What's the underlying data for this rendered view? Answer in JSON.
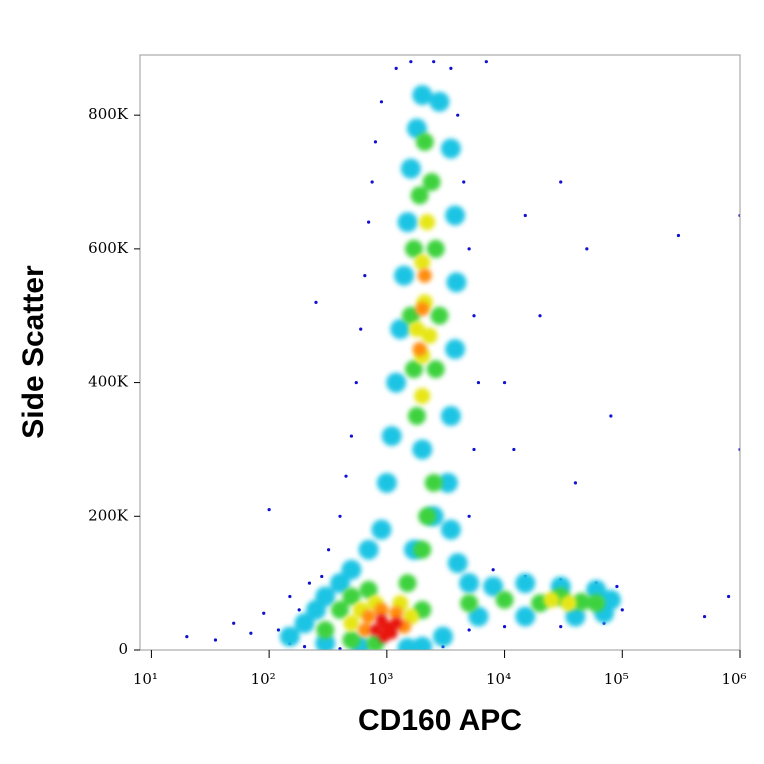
{
  "chart_data": {
    "type": "scatter",
    "x_label": "CD160 APC",
    "y_label": "Side Scatter",
    "xscale": "log",
    "xlim": [
      8,
      1000000
    ],
    "xticks": [
      {
        "value": 10,
        "label": "10¹"
      },
      {
        "value": 100,
        "label": "10²"
      },
      {
        "value": 1000,
        "label": "10³"
      },
      {
        "value": 10000,
        "label": "10⁴"
      },
      {
        "value": 100000,
        "label": "10⁵"
      },
      {
        "value": 1000000,
        "label": "10⁶"
      }
    ],
    "ylim": [
      0,
      890000
    ],
    "yticks": [
      0,
      {
        "value": 200000,
        "label": "200K"
      },
      {
        "value": 400000,
        "label": "400K"
      },
      {
        "value": 600000,
        "label": "600K"
      },
      {
        "value": 800000,
        "label": "800K"
      }
    ],
    "series": [
      {
        "color": "#1010d0",
        "x": [
          20,
          35,
          50,
          70,
          90,
          120,
          150,
          180,
          220,
          280,
          320,
          400,
          450,
          500,
          550,
          600,
          650,
          700,
          750,
          800,
          900,
          1200,
          1600,
          2500,
          3500,
          4000,
          4500,
          5000,
          5500,
          6000,
          5500,
          5000,
          8000,
          15000,
          30000,
          60000,
          90000,
          100000,
          70000,
          30000,
          10000,
          5000,
          3000,
          2000,
          400,
          200,
          150,
          10000,
          20000,
          15000,
          30000,
          50000,
          80000,
          300000,
          1000000,
          500000,
          800000,
          1000000,
          40000,
          12000,
          100,
          250,
          7000
        ],
        "y": [
          20000,
          15000,
          40000,
          25000,
          55000,
          30000,
          80000,
          60000,
          100000,
          110000,
          150000,
          200000,
          260000,
          320000,
          400000,
          480000,
          560000,
          640000,
          700000,
          760000,
          820000,
          870000,
          880000,
          880000,
          870000,
          800000,
          700000,
          600000,
          500000,
          400000,
          300000,
          200000,
          120000,
          110000,
          105000,
          100000,
          95000,
          60000,
          40000,
          35000,
          35000,
          30000,
          5000,
          3000,
          2000,
          5000,
          10000,
          400000,
          500000,
          650000,
          700000,
          600000,
          350000,
          620000,
          650000,
          50000,
          80000,
          300000,
          250000,
          300000,
          210000,
          520000,
          880000
        ]
      },
      {
        "color": "#1cc4e4",
        "x": [
          150,
          200,
          250,
          300,
          400,
          500,
          700,
          900,
          1000,
          1100,
          1200,
          1300,
          1400,
          1500,
          1600,
          1800,
          2000,
          2800,
          3500,
          3800,
          3900,
          3800,
          3500,
          3300,
          3500,
          4000,
          5000,
          8000,
          15000,
          30000,
          60000,
          80000,
          70000,
          40000,
          15000,
          6000,
          3000,
          2000,
          1500,
          600,
          300,
          2500,
          2000,
          1700
        ],
        "y": [
          20000,
          40000,
          60000,
          80000,
          100000,
          120000,
          150000,
          180000,
          250000,
          320000,
          400000,
          480000,
          560000,
          640000,
          720000,
          780000,
          830000,
          820000,
          750000,
          650000,
          550000,
          450000,
          350000,
          250000,
          180000,
          130000,
          100000,
          95000,
          100000,
          95000,
          90000,
          75000,
          55000,
          50000,
          50000,
          50000,
          20000,
          5000,
          3000,
          5000,
          10000,
          200000,
          300000,
          150000
        ]
      },
      {
        "color": "#3cd23c",
        "x": [
          300,
          400,
          500,
          700,
          1500,
          2000,
          2200,
          2500,
          1800,
          1700,
          2600,
          1600,
          2800,
          1700,
          2600,
          1900,
          2400,
          2100,
          5000,
          10000,
          20000,
          30000,
          45000,
          60000,
          2000,
          800,
          500
        ],
        "y": [
          30000,
          60000,
          80000,
          90000,
          100000,
          150000,
          200000,
          250000,
          350000,
          420000,
          420000,
          500000,
          500000,
          600000,
          600000,
          680000,
          700000,
          760000,
          70000,
          75000,
          70000,
          80000,
          72000,
          70000,
          60000,
          10000,
          15000
        ]
      },
      {
        "color": "#e6e614",
        "x": [
          500,
          600,
          800,
          1300,
          1600,
          2000,
          2000,
          2100,
          2000,
          2200,
          1800,
          2300,
          25000,
          35000
        ],
        "y": [
          40000,
          60000,
          70000,
          70000,
          50000,
          380000,
          440000,
          520000,
          580000,
          640000,
          480000,
          470000,
          75000,
          70000
        ]
      },
      {
        "color": "#ff8c0a",
        "x": [
          650,
          700,
          900,
          1200,
          1400,
          1900,
          2000,
          2100
        ],
        "y": [
          30000,
          50000,
          60000,
          55000,
          35000,
          450000,
          510000,
          560000
        ]
      },
      {
        "color": "#e81810",
        "x": [
          800,
          900,
          1000,
          1100,
          1200,
          950
        ],
        "y": [
          30000,
          45000,
          35000,
          25000,
          40000,
          20000
        ]
      }
    ]
  }
}
